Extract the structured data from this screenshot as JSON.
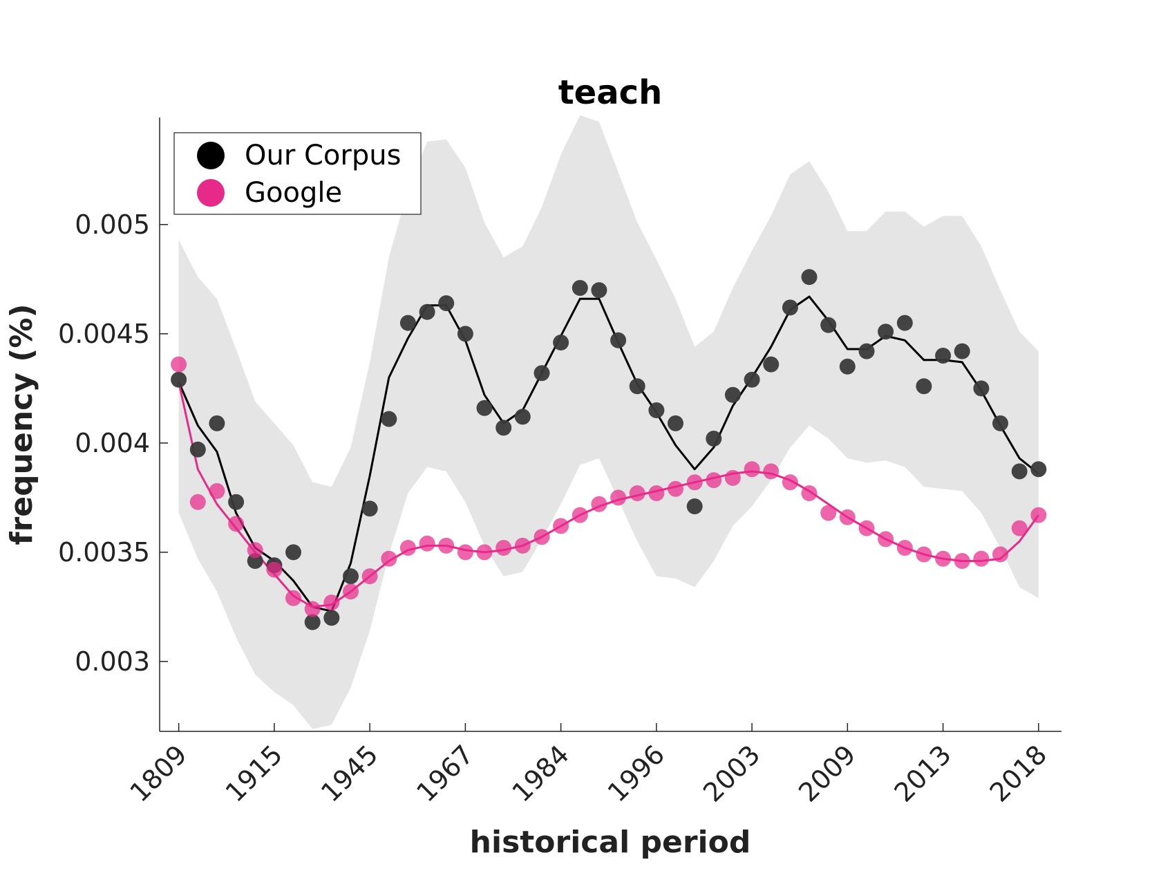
{
  "chart_data": {
    "type": "scatter",
    "title": "teach",
    "xlabel": "historical period",
    "ylabel": "frequency (%)",
    "ylim": [
      0.00268,
      0.00549
    ],
    "y_ticks": [
      0.003,
      0.0035,
      0.004,
      0.0045,
      0.005
    ],
    "y_tick_labels": [
      "0.003",
      "0.0035",
      "0.004",
      "0.0045",
      "0.005"
    ],
    "x_ticks": [
      "1809",
      "1915",
      "1945",
      "1967",
      "1984",
      "1996",
      "2003",
      "2009",
      "2013",
      "2018"
    ],
    "x_tick_positions": [
      0,
      5,
      10,
      15,
      20,
      25,
      30,
      35,
      40,
      45
    ],
    "x_range": [
      -1,
      46.2
    ],
    "legend_position": "top-left",
    "legend": [
      {
        "name": "Our Corpus",
        "color": "#000000"
      },
      {
        "name": "Google",
        "color": "#e7298a"
      }
    ],
    "band_color": "#e5e5e5",
    "series": [
      {
        "name": "Our Corpus",
        "color": "#000000",
        "point_color": "#3a3a3a",
        "points": [
          0.00429,
          0.00397,
          0.00409,
          0.00373,
          0.00346,
          0.00344,
          0.0035,
          0.00318,
          0.0032,
          0.00339,
          0.0037,
          0.00411,
          0.00455,
          0.0046,
          0.00464,
          0.0045,
          0.00416,
          0.00407,
          0.00412,
          0.00432,
          0.00446,
          0.00471,
          0.0047,
          0.00447,
          0.00426,
          0.00415,
          0.00409,
          0.00371,
          0.00402,
          0.00422,
          0.00429,
          0.00436,
          0.00462,
          0.00476,
          0.00454,
          0.00435,
          0.00442,
          0.00451,
          0.00455,
          0.00426,
          0.0044,
          0.00442,
          0.00425,
          0.00409,
          0.00387,
          0.00388
        ],
        "smooth": [
          0.00428,
          0.00408,
          0.00396,
          0.00368,
          0.00352,
          0.00346,
          0.00337,
          0.00325,
          0.00323,
          0.00345,
          0.00385,
          0.0043,
          0.00448,
          0.00463,
          0.00463,
          0.00447,
          0.00422,
          0.00409,
          0.00415,
          0.00432,
          0.00449,
          0.00466,
          0.00466,
          0.00446,
          0.00427,
          0.00414,
          0.00399,
          0.00388,
          0.00398,
          0.00417,
          0.0043,
          0.00444,
          0.00461,
          0.00467,
          0.00456,
          0.00443,
          0.00443,
          0.00449,
          0.00447,
          0.00438,
          0.00438,
          0.00437,
          0.00424,
          0.00408,
          0.00393,
          0.00386
        ],
        "band_upper": [
          0.00493,
          0.00476,
          0.00466,
          0.00443,
          0.00419,
          0.00409,
          0.00399,
          0.00382,
          0.0038,
          0.00398,
          0.00437,
          0.00485,
          0.00516,
          0.00538,
          0.00539,
          0.00526,
          0.00501,
          0.00485,
          0.0049,
          0.00508,
          0.00532,
          0.0055,
          0.00547,
          0.00524,
          0.00501,
          0.00484,
          0.00466,
          0.00444,
          0.00451,
          0.00471,
          0.00488,
          0.00504,
          0.00523,
          0.00529,
          0.00515,
          0.00497,
          0.00497,
          0.00506,
          0.00506,
          0.00499,
          0.00504,
          0.00504,
          0.0049,
          0.0047,
          0.00451,
          0.00442
        ],
        "band_lower": [
          0.00368,
          0.00347,
          0.00332,
          0.00311,
          0.00294,
          0.00286,
          0.0028,
          0.00269,
          0.00271,
          0.00288,
          0.00314,
          0.00349,
          0.00377,
          0.00389,
          0.00387,
          0.00373,
          0.00353,
          0.00339,
          0.00341,
          0.00356,
          0.00372,
          0.0039,
          0.00393,
          0.00374,
          0.00355,
          0.00339,
          0.00338,
          0.00334,
          0.00346,
          0.00362,
          0.00371,
          0.00383,
          0.00398,
          0.00408,
          0.00402,
          0.00393,
          0.00391,
          0.00392,
          0.00389,
          0.0038,
          0.00379,
          0.00378,
          0.00368,
          0.00352,
          0.00334,
          0.00329
        ]
      },
      {
        "name": "Google",
        "color": "#e7298a",
        "point_color": "#e7298a",
        "points": [
          0.00436,
          0.00373,
          0.00378,
          0.00363,
          0.00351,
          0.00342,
          0.00329,
          0.00324,
          0.00327,
          0.00332,
          0.00339,
          0.00347,
          0.00352,
          0.00354,
          0.00353,
          0.0035,
          0.0035,
          0.00352,
          0.00353,
          0.00357,
          0.00362,
          0.00367,
          0.00372,
          0.00375,
          0.00377,
          0.00377,
          0.00379,
          0.00382,
          0.00383,
          0.00384,
          0.00388,
          0.00387,
          0.00382,
          0.00377,
          0.00368,
          0.00366,
          0.00361,
          0.00356,
          0.00352,
          0.00349,
          0.00347,
          0.00346,
          0.00347,
          0.00349,
          0.00361,
          0.00367
        ],
        "smooth": [
          0.00428,
          0.00388,
          0.00372,
          0.00361,
          0.0035,
          0.0034,
          0.0033,
          0.00325,
          0.00326,
          0.00332,
          0.00339,
          0.00346,
          0.00351,
          0.00353,
          0.00353,
          0.00351,
          0.0035,
          0.00351,
          0.00353,
          0.00357,
          0.00362,
          0.00367,
          0.00371,
          0.00374,
          0.00376,
          0.00378,
          0.0038,
          0.00382,
          0.00384,
          0.00386,
          0.00387,
          0.00386,
          0.00383,
          0.00378,
          0.00372,
          0.00366,
          0.00361,
          0.00356,
          0.00352,
          0.00349,
          0.00347,
          0.00346,
          0.00346,
          0.00347,
          0.00355,
          0.00367
        ]
      }
    ]
  }
}
